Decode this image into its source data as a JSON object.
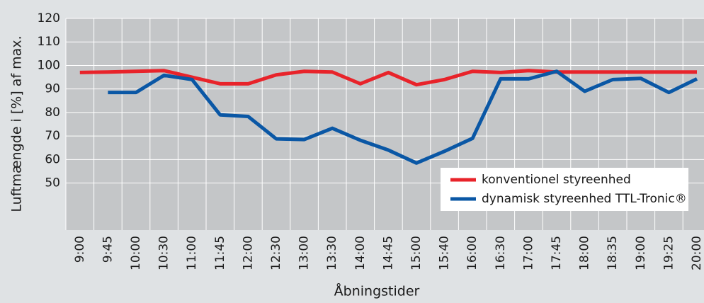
{
  "chart_data": {
    "type": "line",
    "y_label": "Luftmængde i [%] af max.",
    "x_label": "Åbningstider",
    "categories": [
      "9:00",
      "9:45",
      "10:00",
      "10:30",
      "11:00",
      "11:45",
      "12:00",
      "12:30",
      "13:00",
      "13:30",
      "14:00",
      "14:45",
      "15:00",
      "15:40",
      "16:00",
      "16:30",
      "17:00",
      "17:45",
      "18:00",
      "18:35",
      "19:00",
      "19:25",
      "20:00"
    ],
    "series": [
      {
        "name": "konventionel styreenhed",
        "color": "#e8232a",
        "values": [
          97,
          97.2,
          97.5,
          97.8,
          95,
          92.2,
          92.2,
          96,
          97.5,
          97.2,
          92.2,
          97,
          91.8,
          94,
          97.5,
          97,
          97.8,
          97.2,
          97.2,
          97.2,
          97.2,
          97.2,
          97.2
        ]
      },
      {
        "name": "dynamisk styreenhed TTL-Tronic®",
        "color": "#0a57a5",
        "values": [
          null,
          88.5,
          88.5,
          95.8,
          94,
          79,
          78.3,
          68.8,
          68.5,
          73.3,
          68.2,
          64,
          58.5,
          63.5,
          69,
          94.3,
          94.3,
          97.5,
          89,
          94,
          94.5,
          88.5,
          94.3
        ]
      }
    ],
    "ylim": [
      30,
      120
    ],
    "yticks": [
      50,
      60,
      70,
      80,
      90,
      100,
      110,
      120
    ],
    "grid": true,
    "legend": "lower right"
  }
}
